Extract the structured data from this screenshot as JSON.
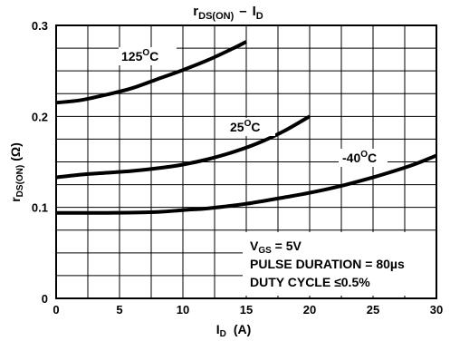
{
  "chart_data": {
    "type": "line",
    "title": {
      "main": "r",
      "sub": "DS(ON)",
      "dash": "–",
      "main2": "I",
      "sub2": "D"
    },
    "xlabel": {
      "main": "I",
      "sub": "D",
      "rest": "(A)"
    },
    "ylabel": {
      "main": "r",
      "sub": "DS(ON)",
      "rest": "(Ω)"
    },
    "xlim": [
      0,
      30
    ],
    "ylim": [
      0,
      0.3
    ],
    "x_ticks": [
      "0",
      "5",
      "10",
      "15",
      "20",
      "25",
      "30"
    ],
    "x_tick_values": [
      0,
      5,
      10,
      15,
      20,
      25,
      30
    ],
    "y_ticks": [
      "0",
      "0.1",
      "0.2",
      "0.3"
    ],
    "y_tick_values": [
      0,
      0.1,
      0.2,
      0.3
    ],
    "grid": true,
    "series": [
      {
        "name": "125°C",
        "label_main": "125",
        "label_sup": "O",
        "label_unit": "C",
        "x": [
          0,
          2,
          4,
          6,
          8,
          10,
          12,
          14,
          15
        ],
        "y": [
          0.215,
          0.218,
          0.224,
          0.231,
          0.241,
          0.251,
          0.262,
          0.275,
          0.282
        ]
      },
      {
        "name": "25°C",
        "label_main": "25",
        "label_sup": "O",
        "label_unit": "C",
        "x": [
          0,
          2,
          4,
          6,
          8,
          10,
          12,
          14,
          16,
          18,
          20
        ],
        "y": [
          0.133,
          0.136,
          0.138,
          0.14,
          0.143,
          0.147,
          0.153,
          0.161,
          0.171,
          0.184,
          0.2
        ]
      },
      {
        "name": "-40°C",
        "label_main": "-40",
        "label_sup": "O",
        "label_unit": "C",
        "x": [
          0,
          4,
          8,
          10,
          12,
          15,
          18,
          20,
          22,
          25,
          28,
          30
        ],
        "y": [
          0.094,
          0.094,
          0.095,
          0.097,
          0.099,
          0.104,
          0.111,
          0.116,
          0.122,
          0.133,
          0.146,
          0.157
        ]
      }
    ],
    "annotations": [
      {
        "main": "V",
        "sub": "GS",
        "rest": " = 5V"
      },
      {
        "main": "PULSE DURATION = 80µs",
        "sub": "",
        "rest": ""
      },
      {
        "main": "DUTY CYCLE ≤0.5%",
        "sub": "",
        "rest": ""
      }
    ]
  }
}
